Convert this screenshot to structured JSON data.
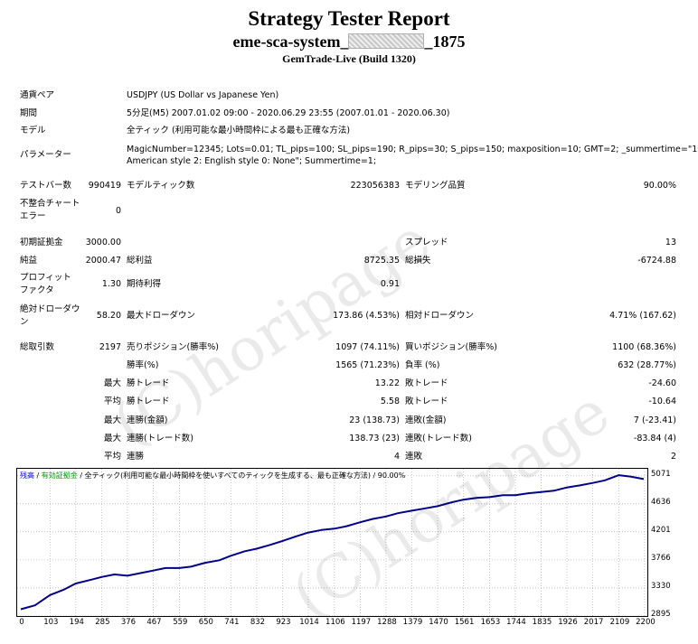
{
  "header": {
    "title": "Strategy Tester Report",
    "system_prefix": "eme-sca-system_",
    "system_suffix": "_1875",
    "build": "GemTrade-Live (Build 1320)"
  },
  "info": {
    "pair_label": "通貨ペア",
    "pair_value": "USDJPY (US Dollar vs Japanese Yen)",
    "period_label": "期間",
    "period_value": "5分足(M5) 2007.01.02 09:00 - 2020.06.29 23:55 (2007.01.01 - 2020.06.30)",
    "model_label": "モデル",
    "model_value": "全ティック (利用可能な最小時間枠による最も正確な方法)",
    "params_label": "パラメーター",
    "params_line1": "MagicNumber=12345; Lots=0.01; TL_pips=100; SL_pips=190; R_pips=30; S_pips=150; maxposition=10; GMT=2; _summertime=\"1:",
    "params_line2": "American style 2: English style 0: None\"; Summertime=1;"
  },
  "stats": {
    "bars_label": "テストバー数",
    "bars_value": "990419",
    "ticks_label": "モデルティック数",
    "ticks_value": "223056383",
    "quality_label": "モデリング品質",
    "quality_value": "90.00%",
    "mismatch_label1": "不整合チャート",
    "mismatch_label2": "エラー",
    "mismatch_value": "0",
    "deposit_label": "初期証拠金",
    "deposit_value": "3000.00",
    "spread_label": "スプレッド",
    "spread_value": "13",
    "net_label": "純益",
    "net_value": "2000.47",
    "gross_profit_label": "総利益",
    "gross_profit_value": "8725.35",
    "gross_loss_label": "総損失",
    "gross_loss_value": "-6724.88",
    "pf_label1": "プロフィット",
    "pf_label2": "ファクタ",
    "pf_value": "1.30",
    "expected_label": "期待利得",
    "expected_value": "0.91",
    "abs_dd_label1": "絶対ドローダウ",
    "abs_dd_label2": "ン",
    "abs_dd_value": "58.20",
    "max_dd_label": "最大ドローダウン",
    "max_dd_value": "173.86 (4.53%)",
    "rel_dd_label": "相対ドローダウン",
    "rel_dd_value": "4.71% (167.62)",
    "total_trades_label": "総取引数",
    "total_trades_value": "2197",
    "short_label": "売りポジション(勝率%)",
    "short_value": "1097 (74.11%)",
    "long_label": "買いポジション(勝率%)",
    "long_value": "1100 (68.36%)",
    "win_rate_label": "勝率(%)",
    "win_rate_value": "1565 (71.23%)",
    "loss_rate_label": "負率 (%)",
    "loss_rate_value": "632 (28.77%)",
    "max_word": "最大",
    "avg_word": "平均",
    "win_trade_label": "勝トレード",
    "loss_trade_label": "敗トレード",
    "max_win_value": "13.22",
    "max_loss_value": "-24.60",
    "avg_win_value": "5.58",
    "avg_loss_value": "-10.64",
    "consec_win_amt_label": "連勝(金額)",
    "consec_win_amt_value": "23 (138.73)",
    "consec_loss_amt_label": "連敗(金額)",
    "consec_loss_amt_value": "7 (-23.41)",
    "consec_win_trd_label": "連勝(トレード数)",
    "consec_win_trd_value": "138.73 (23)",
    "consec_loss_trd_label": "連敗(トレード数)",
    "consec_loss_trd_value": "-83.84 (4)",
    "consec_win_label": "連勝",
    "consec_win_value": "4",
    "consec_loss_label": "連敗",
    "consec_loss_value": "2"
  },
  "watermark": "(C)horipage",
  "colors": {
    "balance": "#00008b",
    "grid": "#a0a0a0",
    "accent_green": "#00a000",
    "legend_blue": "#0000cc"
  },
  "chart_legend": {
    "balance": "残高",
    "equity": "有効証拠金",
    "model": "全ティック(利用可能な最小時間枠を使いすべてのティックを生成する、最も正確な方法)",
    "quality": "90.00%"
  },
  "chart_data": {
    "type": "line",
    "x_ticks": [
      0,
      103,
      194,
      285,
      376,
      467,
      559,
      650,
      741,
      832,
      923,
      1014,
      1106,
      1197,
      1288,
      1379,
      1470,
      1561,
      1653,
      1744,
      1835,
      1926,
      2017,
      2109,
      2200
    ],
    "y_ticks": [
      2895,
      3330,
      3766,
      4201,
      4636,
      5071
    ],
    "xlim": [
      0,
      2197
    ],
    "ylim": [
      2895,
      5180
    ],
    "grid": true,
    "series": [
      {
        "x": [
          0,
          50,
          103,
          150,
          194,
          250,
          285,
          330,
          376,
          420,
          467,
          510,
          559,
          600,
          650,
          700,
          741,
          790,
          832,
          880,
          923,
          970,
          1014,
          1060,
          1106,
          1150,
          1197,
          1240,
          1288,
          1330,
          1379,
          1420,
          1470,
          1520,
          1561,
          1610,
          1653,
          1700,
          1744,
          1790,
          1835,
          1880,
          1926,
          1970,
          2017,
          2060,
          2109,
          2150,
          2197
        ],
        "y": [
          3000,
          3060,
          3220,
          3300,
          3400,
          3460,
          3500,
          3540,
          3520,
          3560,
          3600,
          3640,
          3640,
          3660,
          3720,
          3760,
          3830,
          3900,
          3940,
          4000,
          4060,
          4130,
          4190,
          4230,
          4250,
          4290,
          4350,
          4400,
          4440,
          4490,
          4530,
          4560,
          4600,
          4660,
          4700,
          4730,
          4740,
          4770,
          4770,
          4800,
          4820,
          4840,
          4890,
          4920,
          4960,
          5000,
          5080,
          5060,
          5020
        ]
      }
    ]
  }
}
